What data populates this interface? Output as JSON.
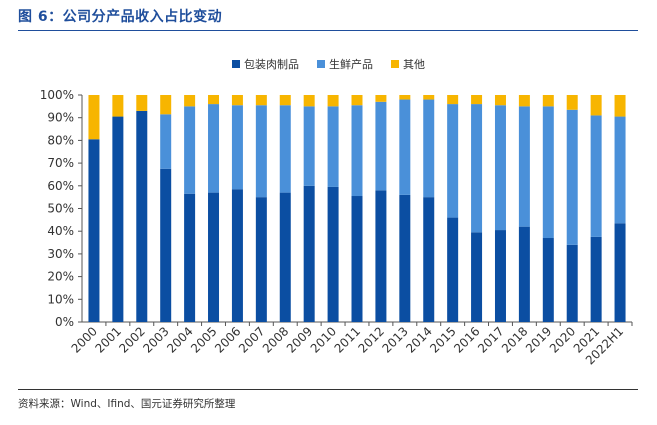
{
  "header": {
    "title": "图 6：公司分产品收入占比变动"
  },
  "footer": {
    "source": "资料来源：Wind、Ifind、国元证券研究所整理"
  },
  "chart_data": {
    "type": "bar",
    "stacked": true,
    "categories": [
      "2000",
      "2001",
      "2002",
      "2003",
      "2004",
      "2005",
      "2006",
      "2007",
      "2008",
      "2009",
      "2010",
      "2011",
      "2012",
      "2013",
      "2014",
      "2015",
      "2016",
      "2017",
      "2018",
      "2019",
      "2020",
      "2021",
      "2022H1"
    ],
    "series": [
      {
        "name": "包装肉制品",
        "color": "#0b4ea2",
        "values": [
          80.5,
          90.5,
          93.0,
          67.5,
          56.5,
          57.0,
          58.5,
          55.0,
          57.0,
          60.0,
          59.5,
          55.5,
          58.0,
          56.0,
          55.0,
          46.0,
          39.5,
          40.5,
          42.0,
          37.0,
          34.0,
          37.5,
          43.5
        ]
      },
      {
        "name": "生鲜产品",
        "color": "#4a90d9",
        "values": [
          0.0,
          0.0,
          0.0,
          24.0,
          38.5,
          39.0,
          37.0,
          40.5,
          38.5,
          35.0,
          35.5,
          40.0,
          39.0,
          42.0,
          43.0,
          50.0,
          56.5,
          55.0,
          53.0,
          58.0,
          59.5,
          53.5,
          47.0
        ]
      },
      {
        "name": "其他",
        "color": "#f7b500",
        "values": [
          19.5,
          9.5,
          7.0,
          8.5,
          5.0,
          4.0,
          4.5,
          4.5,
          4.5,
          5.0,
          5.0,
          4.5,
          3.0,
          2.0,
          2.0,
          4.0,
          4.0,
          4.5,
          5.0,
          5.0,
          6.5,
          9.0,
          9.5
        ]
      }
    ],
    "yticks": [
      "0%",
      "10%",
      "20%",
      "30%",
      "40%",
      "50%",
      "60%",
      "70%",
      "80%",
      "90%",
      "100%"
    ],
    "ylim": [
      0,
      100
    ],
    "grid": false,
    "legend_position": "top-center"
  }
}
